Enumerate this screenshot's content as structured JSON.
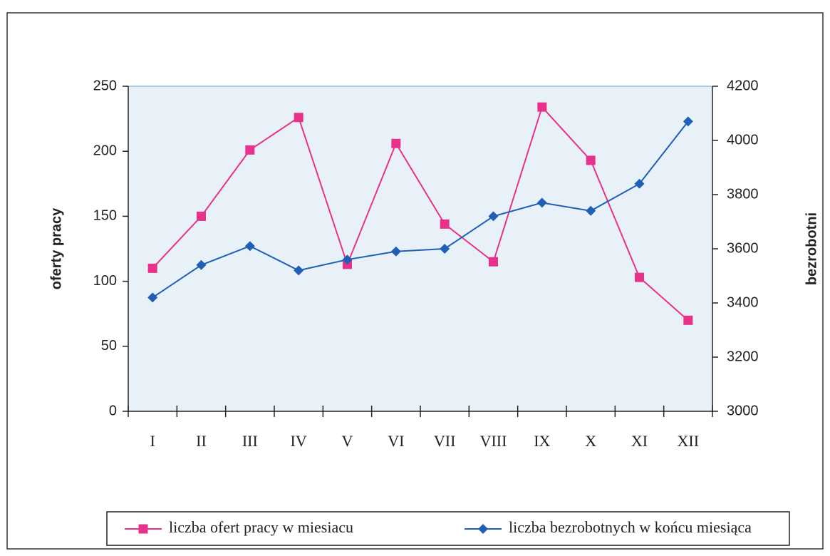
{
  "chart_data": {
    "type": "line",
    "categories": [
      "I",
      "II",
      "III",
      "IV",
      "V",
      "VI",
      "VII",
      "VIII",
      "IX",
      "X",
      "XI",
      "XII"
    ],
    "series": [
      {
        "name": "liczba ofert pracy w miesiacu",
        "color": "#e8318a",
        "marker": "square",
        "values": [
          110,
          150,
          201,
          226,
          113,
          206,
          144,
          115,
          234,
          193,
          103,
          70
        ]
      },
      {
        "name": "liczba bezrobotnych w końcu miesiąca",
        "color": "#1f5fb4",
        "marker": "diamond",
        "axis": "y2",
        "values": [
          3420,
          3540,
          3610,
          3520,
          3560,
          3590,
          3600,
          3720,
          3770,
          3740,
          3840,
          4070
        ]
      }
    ],
    "ylabel": "oferty pracy",
    "y2label": "bezrobotni",
    "ylim": [
      0,
      250
    ],
    "yticks": [
      0,
      50,
      100,
      150,
      200,
      250
    ],
    "y2lim": [
      3000,
      4200
    ],
    "y2ticks": [
      3000,
      3200,
      3400,
      3600,
      3800,
      4000,
      4200
    ],
    "grid": false,
    "legend": "bottom"
  }
}
